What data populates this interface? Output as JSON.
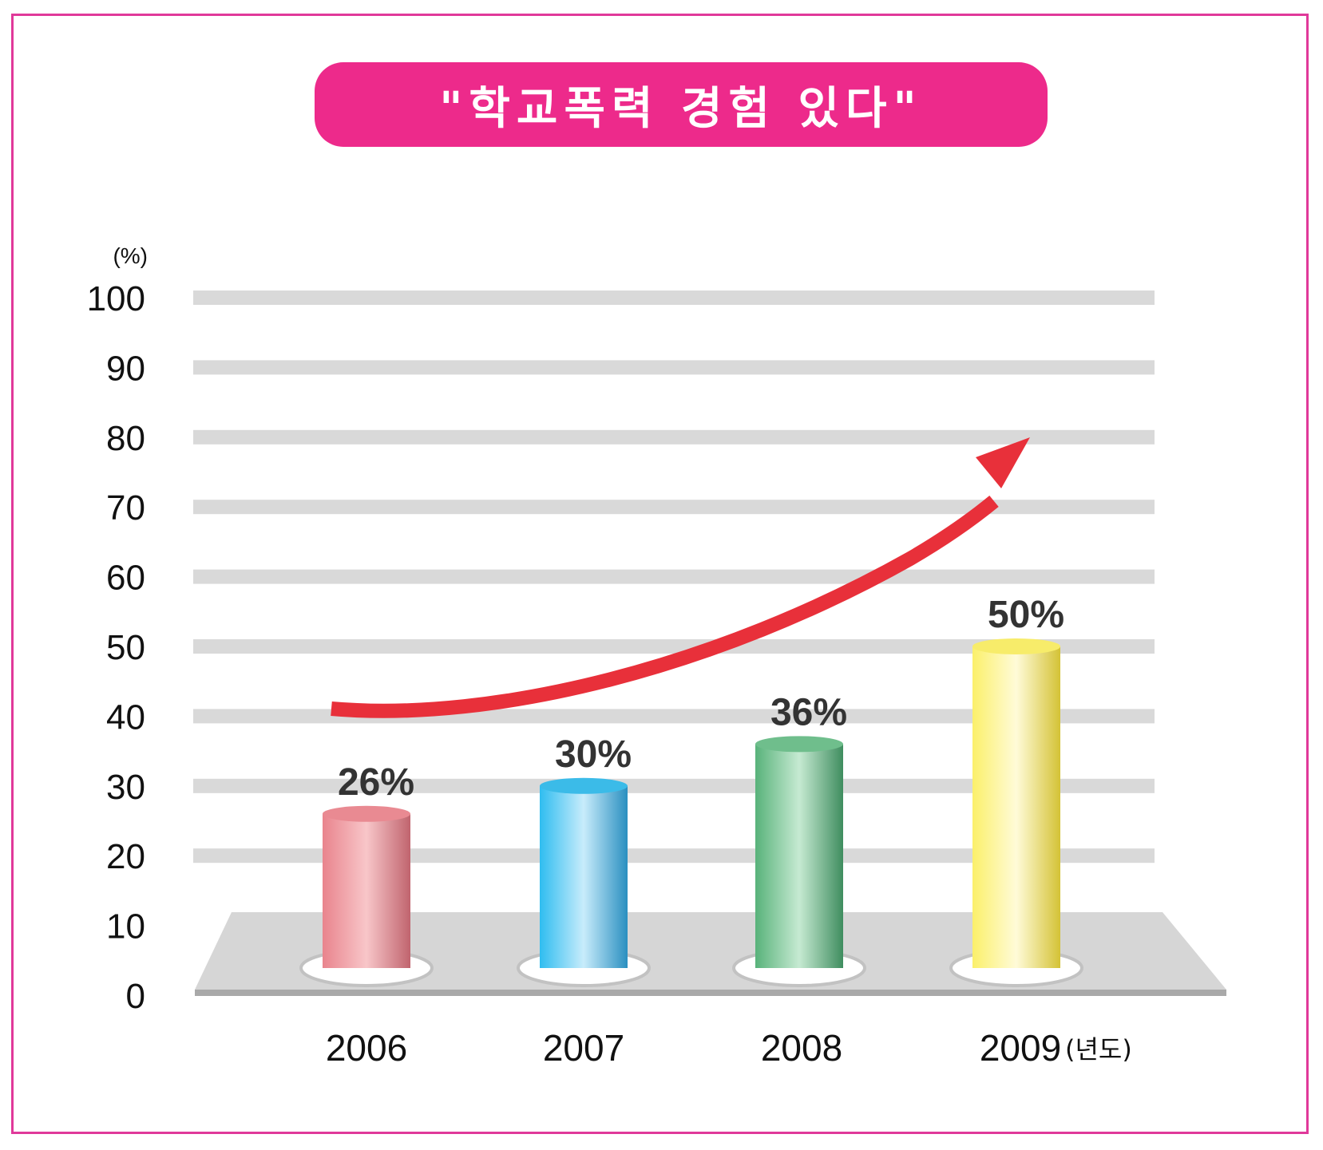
{
  "title": "\"학교폭력 경험 있다\"",
  "colors": {
    "frame": "#e0399a",
    "title_bg": "#ed2a8b",
    "gridline": "#d9d9d9",
    "platform": "#d6d6d6",
    "trend_arrow": "#e8303a"
  },
  "chart_data": {
    "type": "bar",
    "style": "3d-cylinder",
    "categories": [
      "2006",
      "2007",
      "2008",
      "2009"
    ],
    "values": [
      26,
      30,
      36,
      50
    ],
    "data_labels": [
      "26%",
      "30%",
      "36%",
      "50%"
    ],
    "bar_colors": [
      "#e98a92",
      "#3bbbe8",
      "#6fbe8c",
      "#f7ec6a"
    ],
    "y_unit_label": "(%)",
    "x_unit_label": "(년도)",
    "ylim": [
      0,
      100
    ],
    "y_ticks": [
      "0",
      "10",
      "20",
      "30",
      "40",
      "50",
      "60",
      "70",
      "80",
      "90",
      "100"
    ],
    "grid": true,
    "trend_arrow": "increasing"
  }
}
